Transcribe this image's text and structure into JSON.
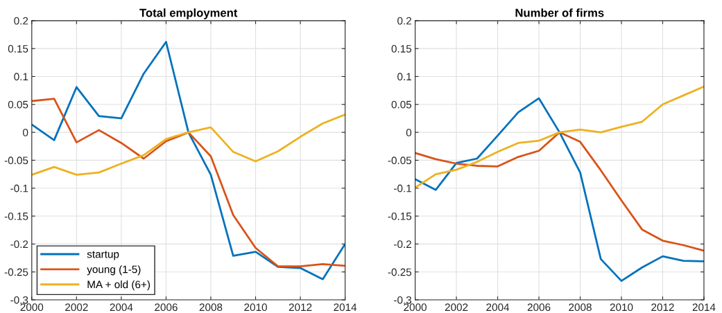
{
  "chart_data": [
    {
      "type": "line",
      "title": "Total employment",
      "x": [
        2000,
        2001,
        2002,
        2003,
        2004,
        2005,
        2006,
        2007,
        2008,
        2009,
        2010,
        2011,
        2012,
        2013,
        2014
      ],
      "series": [
        {
          "name": "startup",
          "color": "#0072bd",
          "values": [
            0.014,
            -0.014,
            0.081,
            0.029,
            0.025,
            0.105,
            0.162,
            0.0,
            -0.076,
            -0.221,
            -0.214,
            -0.241,
            -0.243,
            -0.263,
            -0.2
          ]
        },
        {
          "name": "young (1-5)",
          "color": "#d95319",
          "values": [
            0.056,
            0.06,
            -0.018,
            0.004,
            -0.019,
            -0.047,
            -0.016,
            0.0,
            -0.043,
            -0.148,
            -0.207,
            -0.24,
            -0.24,
            -0.236,
            -0.239
          ]
        },
        {
          "name": "MA + old (6+)",
          "color": "#edb120",
          "values": [
            -0.076,
            -0.062,
            -0.076,
            -0.072,
            -0.056,
            -0.041,
            -0.012,
            0.0,
            0.009,
            -0.035,
            -0.052,
            -0.034,
            -0.008,
            0.016,
            0.032
          ]
        }
      ],
      "xlim": [
        2000,
        2014
      ],
      "xticks": [
        2000,
        2002,
        2004,
        2006,
        2008,
        2010,
        2012,
        2014
      ],
      "ylim": [
        -0.3,
        0.2
      ],
      "yticks": [
        -0.3,
        -0.25,
        -0.2,
        -0.15,
        -0.1,
        -0.05,
        0,
        0.05,
        0.1,
        0.15,
        0.2
      ],
      "grid": true,
      "legend": "bottom left",
      "line_style": "solid",
      "marker": "none"
    },
    {
      "type": "line",
      "title": "Number of firms",
      "x": [
        2000,
        2001,
        2002,
        2003,
        2004,
        2005,
        2006,
        2007,
        2008,
        2009,
        2010,
        2011,
        2012,
        2013,
        2014
      ],
      "series": [
        {
          "color": "#0072bd",
          "values": [
            -0.084,
            -0.103,
            -0.055,
            -0.047,
            -0.006,
            0.036,
            0.061,
            0.0,
            -0.072,
            -0.227,
            -0.266,
            -0.242,
            -0.222,
            -0.23,
            -0.231
          ]
        },
        {
          "color": "#d95319",
          "values": [
            -0.037,
            -0.048,
            -0.056,
            -0.06,
            -0.061,
            -0.044,
            -0.033,
            0.0,
            -0.017,
            -0.068,
            -0.122,
            -0.174,
            -0.194,
            -0.202,
            -0.212
          ]
        },
        {
          "color": "#edb120",
          "values": [
            -0.099,
            -0.075,
            -0.067,
            -0.053,
            -0.035,
            -0.019,
            -0.015,
            0.0,
            0.005,
            0.0,
            0.01,
            0.019,
            0.05,
            0.066,
            0.082
          ]
        }
      ],
      "xlim": [
        2000,
        2014
      ],
      "xticks": [
        2000,
        2002,
        2004,
        2006,
        2008,
        2010,
        2012,
        2014
      ],
      "ylim": [
        -0.3,
        0.2
      ],
      "yticks": [
        -0.3,
        -0.25,
        -0.2,
        -0.15,
        -0.1,
        -0.05,
        0,
        0.05,
        0.1,
        0.15,
        0.2
      ],
      "grid": true,
      "line_style": "solid",
      "marker": "none"
    }
  ]
}
